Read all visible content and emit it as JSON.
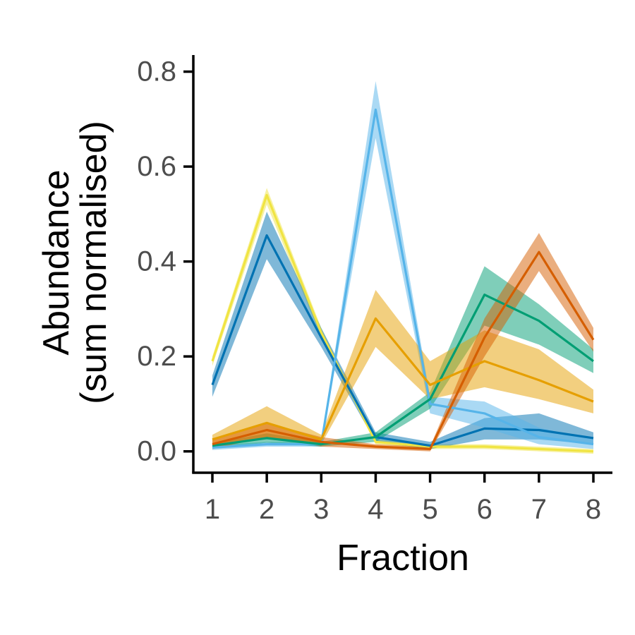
{
  "chart_data": {
    "type": "line",
    "xlabel": "Fraction",
    "ylabel": [
      "Abundance",
      "(sum normalised)"
    ],
    "x": [
      1,
      2,
      3,
      4,
      5,
      6,
      7,
      8
    ],
    "xlim": [
      0.65,
      8.35
    ],
    "ylim": [
      -0.045,
      0.835
    ],
    "x_ticks": [
      1,
      2,
      3,
      4,
      5,
      6,
      7,
      8
    ],
    "x_tick_labels": [
      "1",
      "2",
      "3",
      "4",
      "5",
      "6",
      "7",
      "8"
    ],
    "y_ticks": [
      0.0,
      0.2,
      0.4,
      0.6,
      0.8
    ],
    "y_tick_labels": [
      "0.0",
      "0.2",
      "0.4",
      "0.6",
      "0.8"
    ],
    "grid": false,
    "legend": "none",
    "series": [
      {
        "color": "#F0E442",
        "values": [
          0.19,
          0.54,
          0.25,
          0.02,
          0.01,
          0.01,
          0.005,
          0.0
        ],
        "lower": [
          0.18,
          0.52,
          0.24,
          0.015,
          0.005,
          0.005,
          0.0,
          -0.005
        ],
        "upper": [
          0.2,
          0.555,
          0.26,
          0.025,
          0.015,
          0.015,
          0.01,
          0.005
        ]
      },
      {
        "color": "#0072B2",
        "values": [
          0.14,
          0.455,
          0.24,
          0.03,
          0.012,
          0.048,
          0.045,
          0.028
        ],
        "lower": [
          0.115,
          0.405,
          0.22,
          0.02,
          0.005,
          0.025,
          0.025,
          0.015
        ],
        "upper": [
          0.16,
          0.505,
          0.26,
          0.04,
          0.02,
          0.07,
          0.08,
          0.04
        ]
      },
      {
        "color": "#56B4E9",
        "values": [
          0.008,
          0.015,
          0.015,
          0.72,
          0.1,
          0.08,
          0.03,
          0.015
        ],
        "lower": [
          0.003,
          0.01,
          0.01,
          0.66,
          0.08,
          0.05,
          0.015,
          0.005
        ],
        "upper": [
          0.013,
          0.02,
          0.02,
          0.78,
          0.115,
          0.105,
          0.05,
          0.025
        ]
      },
      {
        "color": "#009E73",
        "values": [
          0.012,
          0.028,
          0.015,
          0.03,
          0.11,
          0.33,
          0.275,
          0.19
        ],
        "lower": [
          0.007,
          0.018,
          0.01,
          0.02,
          0.09,
          0.265,
          0.225,
          0.165
        ],
        "upper": [
          0.017,
          0.038,
          0.02,
          0.04,
          0.125,
          0.39,
          0.31,
          0.215
        ]
      },
      {
        "color": "#E69F00",
        "values": [
          0.025,
          0.06,
          0.025,
          0.28,
          0.14,
          0.19,
          0.15,
          0.105
        ],
        "lower": [
          0.015,
          0.03,
          0.015,
          0.22,
          0.11,
          0.135,
          0.11,
          0.08
        ],
        "upper": [
          0.035,
          0.095,
          0.035,
          0.34,
          0.19,
          0.255,
          0.215,
          0.13
        ]
      },
      {
        "color": "#D55E00",
        "values": [
          0.015,
          0.045,
          0.02,
          0.01,
          0.005,
          0.24,
          0.42,
          0.235
        ],
        "lower": [
          0.005,
          0.03,
          0.01,
          0.005,
          0.0,
          0.2,
          0.38,
          0.21
        ],
        "upper": [
          0.025,
          0.06,
          0.03,
          0.015,
          0.01,
          0.28,
          0.46,
          0.26
        ]
      }
    ]
  }
}
